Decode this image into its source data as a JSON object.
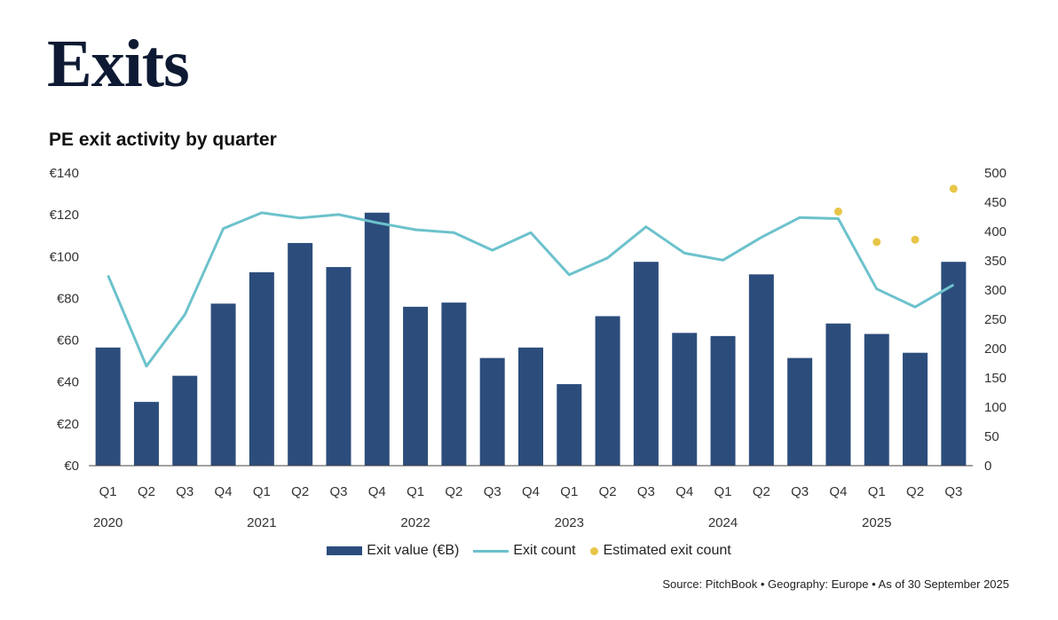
{
  "header": {
    "title": "Exits"
  },
  "footer": {
    "source": "Source: PitchBook  •  Geography: Europe  •  As of 30 September 2025"
  },
  "colors": {
    "bar": "#2c4d7c",
    "line": "#6cc2cc",
    "estimate": "#e8c547",
    "axis": "#555555",
    "title": "#0e1a33"
  },
  "chart_data": {
    "type": "bar",
    "title": "PE exit activity by quarter",
    "categories": [
      "Q1",
      "Q2",
      "Q3",
      "Q4",
      "Q1",
      "Q2",
      "Q3",
      "Q4",
      "Q1",
      "Q2",
      "Q3",
      "Q4",
      "Q1",
      "Q2",
      "Q3",
      "Q4",
      "Q1",
      "Q2",
      "Q3",
      "Q4",
      "Q1",
      "Q2",
      "Q3"
    ],
    "years": [
      {
        "label": "2020",
        "start_index": 0
      },
      {
        "label": "2021",
        "start_index": 4
      },
      {
        "label": "2022",
        "start_index": 8
      },
      {
        "label": "2023",
        "start_index": 12
      },
      {
        "label": "2024",
        "start_index": 16
      },
      {
        "label": "2025",
        "start_index": 20
      }
    ],
    "series": [
      {
        "name": "Exit value (€B)",
        "type": "bar",
        "axis": "left",
        "values": [
          56.5,
          30.5,
          43,
          77.5,
          92.5,
          106.5,
          95,
          121,
          76,
          78,
          51.5,
          56.5,
          39,
          71.5,
          97.5,
          63.5,
          62,
          91.5,
          51.5,
          68,
          63,
          54,
          97.5
        ]
      },
      {
        "name": "Exit count",
        "type": "line",
        "axis": "right",
        "values": [
          325,
          170,
          258,
          405,
          432,
          423,
          429,
          415,
          403,
          398,
          368,
          398,
          326,
          355,
          408,
          363,
          351,
          390,
          424,
          422,
          302,
          271,
          309
        ]
      },
      {
        "name": "Estimated exit count",
        "type": "scatter",
        "axis": "right",
        "points": [
          {
            "index": 19,
            "value": 434
          },
          {
            "index": 20,
            "value": 382
          },
          {
            "index": 21,
            "value": 386
          },
          {
            "index": 22,
            "value": 473
          }
        ]
      }
    ],
    "y_left": {
      "min": 0,
      "max": 140,
      "ticks": [
        "€0",
        "€20",
        "€40",
        "€60",
        "€80",
        "€100",
        "€120",
        "€140"
      ]
    },
    "y_right": {
      "min": 0,
      "max": 500,
      "ticks": [
        "0",
        "50",
        "100",
        "150",
        "200",
        "250",
        "300",
        "350",
        "400",
        "450",
        "500"
      ]
    },
    "grid": false,
    "legend": "bottom"
  }
}
